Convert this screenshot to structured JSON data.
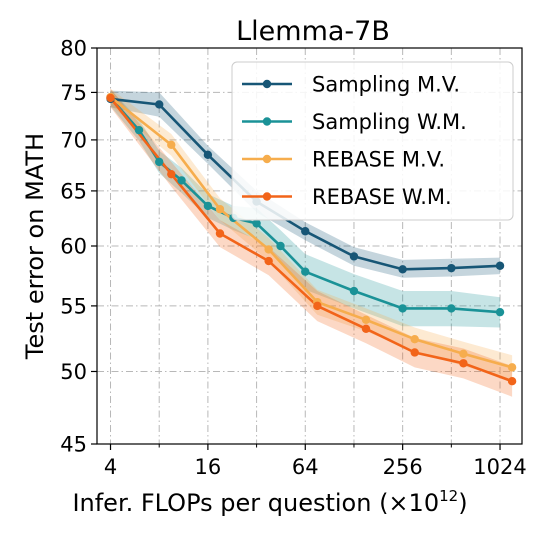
{
  "chart_data": {
    "type": "line",
    "title": "Llemma-7B",
    "xlabel": "Infer. FLOPs per question (×10",
    "xlabel_sup": "12",
    "xlabel_close": ")",
    "ylabel": "Test error on MATH",
    "x_scale": "log2",
    "y_scale": "log",
    "xlim": [
      3.3,
      1400
    ],
    "ylim": [
      45,
      80
    ],
    "x_ticks": [
      4,
      16,
      64,
      256,
      1024
    ],
    "x_tick_labels": [
      "4",
      "16",
      "64",
      "256",
      "1024"
    ],
    "y_ticks": [
      45,
      50,
      55,
      60,
      65,
      70,
      75,
      80
    ],
    "y_tick_labels": [
      "45",
      "50",
      "55",
      "60",
      "65",
      "70",
      "75",
      "80"
    ],
    "grid": true,
    "legend_position": "top-right",
    "series": [
      {
        "name": "Sampling M.V.",
        "color": "#175676",
        "x": [
          4,
          8,
          16,
          32,
          64,
          128,
          256,
          512,
          1024
        ],
        "y": [
          74.3,
          73.7,
          68.5,
          64.0,
          61.3,
          59.1,
          58.0,
          58.1,
          58.3
        ],
        "band": [
          [
            75.2,
            73.4
          ],
          [
            75.0,
            72.4
          ],
          [
            69.4,
            67.6
          ],
          [
            65.0,
            63.0
          ],
          [
            62.1,
            60.5
          ],
          [
            59.9,
            58.3
          ],
          [
            58.8,
            57.3
          ],
          [
            58.9,
            57.4
          ],
          [
            59.0,
            57.6
          ]
        ]
      },
      {
        "name": "Sampling W.M.",
        "color": "#1a9297",
        "x": [
          4,
          6,
          8,
          11,
          16,
          23,
          32,
          45,
          64,
          128,
          256,
          512,
          1024
        ],
        "y": [
          74.4,
          71.0,
          67.8,
          66.0,
          63.6,
          62.5,
          62.0,
          60.0,
          57.8,
          56.2,
          54.8,
          54.8,
          54.5
        ],
        "band": [
          [
            75.3,
            73.5
          ],
          [
            72.1,
            69.9
          ],
          [
            68.9,
            66.7
          ],
          [
            67.2,
            64.8
          ],
          [
            64.7,
            62.5
          ],
          [
            63.6,
            61.4
          ],
          [
            63.4,
            60.6
          ],
          [
            61.4,
            58.6
          ],
          [
            59.3,
            56.3
          ],
          [
            57.6,
            54.8
          ],
          [
            56.2,
            53.4
          ],
          [
            56.2,
            53.4
          ],
          [
            55.7,
            53.3
          ]
        ]
      },
      {
        "name": "REBASE M.V.",
        "color": "#f6ad4d",
        "x": [
          4,
          9.5,
          19,
          38,
          76,
          152,
          304,
          608,
          1216
        ],
        "y": [
          74.5,
          69.5,
          63.3,
          59.7,
          55.3,
          53.9,
          52.4,
          51.3,
          50.3
        ],
        "band": [
          [
            75.4,
            73.6
          ],
          [
            70.6,
            68.4
          ],
          [
            64.3,
            62.3
          ],
          [
            60.7,
            58.7
          ],
          [
            56.3,
            54.3
          ],
          [
            54.8,
            53.0
          ],
          [
            53.3,
            51.5
          ],
          [
            52.2,
            50.4
          ],
          [
            51.2,
            49.4
          ]
        ]
      },
      {
        "name": "REBASE W.M.",
        "color": "#f26419",
        "x": [
          4,
          9.5,
          19,
          38,
          76,
          152,
          304,
          608,
          1216
        ],
        "y": [
          74.4,
          66.6,
          61.1,
          58.7,
          55.0,
          53.2,
          51.4,
          50.6,
          49.3
        ],
        "band": [
          [
            75.4,
            73.4
          ],
          [
            67.8,
            65.4
          ],
          [
            62.3,
            59.9
          ],
          [
            59.9,
            57.5
          ],
          [
            56.2,
            53.8
          ],
          [
            54.3,
            52.1
          ],
          [
            52.5,
            50.3
          ],
          [
            51.7,
            49.5
          ],
          [
            50.4,
            48.2
          ]
        ]
      }
    ]
  }
}
